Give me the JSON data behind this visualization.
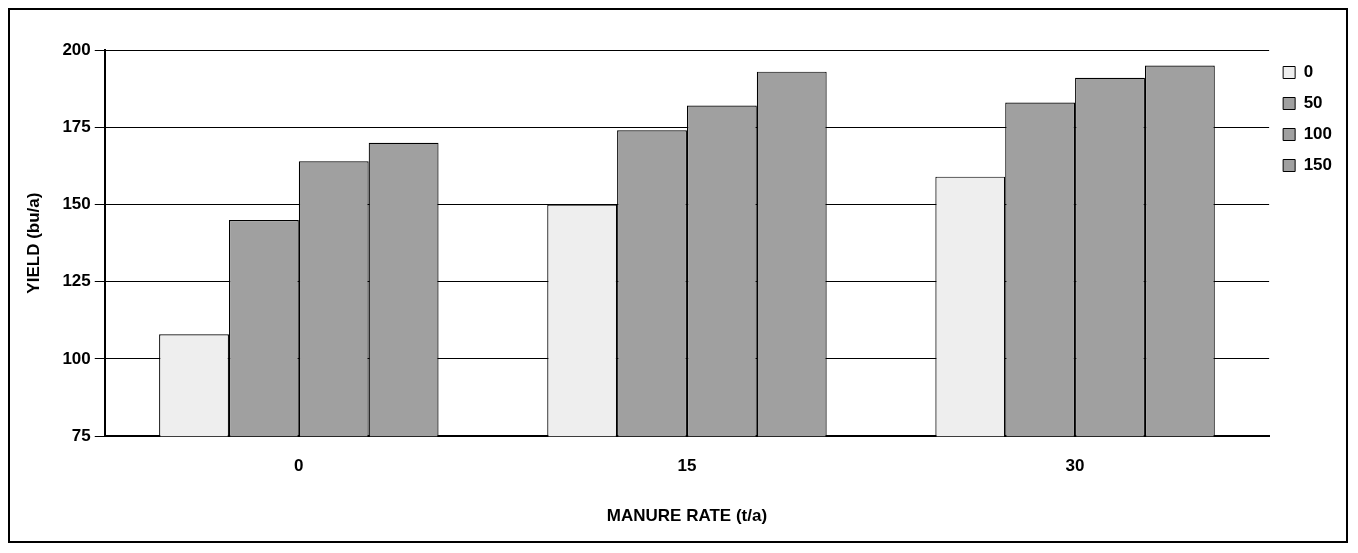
{
  "chart_data": {
    "type": "bar",
    "xlabel": "MANURE RATE (t/a)",
    "ylabel": "YIELD (bu/a)",
    "categories": [
      "0",
      "15",
      "30"
    ],
    "series": [
      {
        "name": "0",
        "color": "#eeeeee",
        "values": [
          108,
          150,
          159
        ]
      },
      {
        "name": "50",
        "color": "#a0a0a0",
        "values": [
          145,
          174,
          183
        ]
      },
      {
        "name": "100",
        "color": "#a0a0a0",
        "values": [
          164,
          182,
          191
        ]
      },
      {
        "name": "150",
        "color": "#a0a0a0",
        "values": [
          170,
          193,
          195
        ]
      }
    ],
    "ylim": [
      75,
      200
    ],
    "yticks": [
      75,
      100,
      125,
      150,
      175,
      200
    ],
    "grid": "y",
    "legend": "top right"
  }
}
